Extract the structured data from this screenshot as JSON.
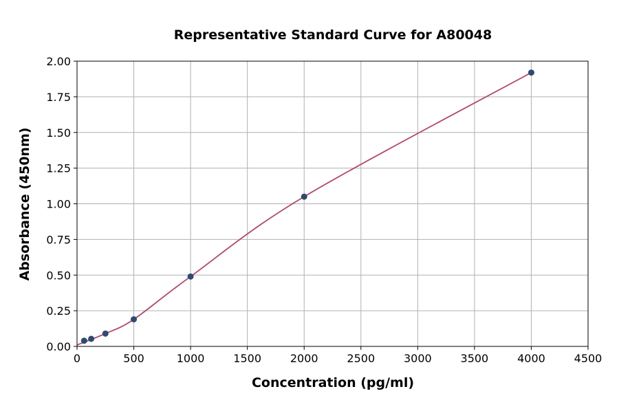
{
  "chart_data": {
    "type": "scatter",
    "title": "Representative Standard Curve for A80048",
    "xlabel": "Concentration (pg/ml)",
    "ylabel": "Absorbance (450nm)",
    "xlim": [
      0,
      4500
    ],
    "ylim": [
      0,
      2.0
    ],
    "xticks": [
      "0",
      "500",
      "1000",
      "1500",
      "2000",
      "2500",
      "3000",
      "3500",
      "4000",
      "4500"
    ],
    "yticks": [
      "0.00",
      "0.25",
      "0.50",
      "0.75",
      "1.00",
      "1.25",
      "1.50",
      "1.75",
      "2.00"
    ],
    "grid": true,
    "series": [
      {
        "x": [
          62.5,
          125,
          250,
          500,
          1000,
          2000,
          4000
        ],
        "y": [
          0.04,
          0.053,
          0.09,
          0.19,
          0.49,
          1.05,
          1.92
        ]
      }
    ],
    "fit_curve": true,
    "colors": {
      "points": "#2e4a72",
      "curve": "#b5466b",
      "grid": "#b0b0b0"
    }
  }
}
